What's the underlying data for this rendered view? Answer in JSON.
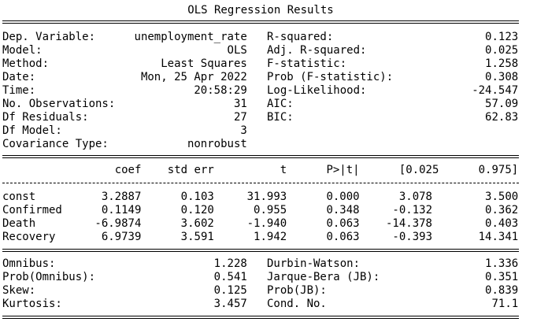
{
  "title": "OLS Regression Results",
  "model_info": {
    "rows": [
      [
        "Dep. Variable:",
        "unemployment_rate",
        "R-squared:",
        "0.123"
      ],
      [
        "Model:",
        "OLS",
        "Adj. R-squared:",
        "0.025"
      ],
      [
        "Method:",
        "Least Squares",
        "F-statistic:",
        "1.258"
      ],
      [
        "Date:",
        "Mon, 25 Apr 2022",
        "Prob (F-statistic):",
        "0.308"
      ],
      [
        "Time:",
        "20:58:29",
        "Log-Likelihood:",
        "-24.547"
      ],
      [
        "No. Observations:",
        "31",
        "AIC:",
        "57.09"
      ],
      [
        "Df Residuals:",
        "27",
        "BIC:",
        "62.83"
      ],
      [
        "Df Model:",
        "3"
      ],
      [
        "Covariance Type:",
        "nonrobust"
      ]
    ]
  },
  "coefficients": {
    "header": [
      "coef",
      "std err",
      "t",
      "P>|t|",
      "[0.025",
      "0.975]"
    ],
    "rows": [
      [
        "const",
        "3.2887",
        "0.103",
        "31.993",
        "0.000",
        "3.078",
        "3.500"
      ],
      [
        "Confirmed",
        "0.1149",
        "0.120",
        "0.955",
        "0.348",
        "-0.132",
        "0.362"
      ],
      [
        "Death",
        "-6.9874",
        "3.602",
        "-1.940",
        "0.063",
        "-14.378",
        "0.403"
      ],
      [
        "Recovery",
        "6.9739",
        "3.591",
        "1.942",
        "0.063",
        "-0.393",
        "14.341"
      ]
    ]
  },
  "diagnostics": {
    "rows": [
      [
        "Omnibus:",
        "1.228",
        "Durbin-Watson:",
        "1.336"
      ],
      [
        "Prob(Omnibus):",
        "0.541",
        "Jarque-Bera (JB):",
        "0.351"
      ],
      [
        "Skew:",
        "0.125",
        "Prob(JB):",
        "0.839"
      ],
      [
        "Kurtosis:",
        "3.457",
        "Cond. No.",
        "71.1"
      ]
    ]
  }
}
